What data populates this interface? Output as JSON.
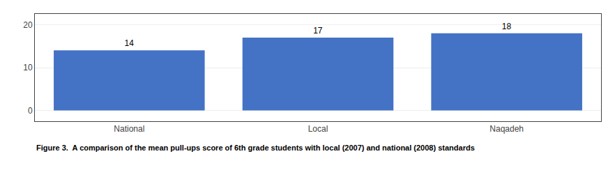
{
  "chart_data": {
    "type": "bar",
    "title": "Figure 3.  A comparison of the mean pull-ups score of 6th grade students with local (2007) and national (2008) standards",
    "categories": [
      "National",
      "Local",
      "Naqadeh"
    ],
    "values": [
      14,
      17,
      18
    ],
    "color": "#4472C4",
    "ylim": [
      -2.5,
      22.5
    ],
    "yticks": [
      0,
      10,
      20
    ],
    "grid": true,
    "data_labels": true
  }
}
